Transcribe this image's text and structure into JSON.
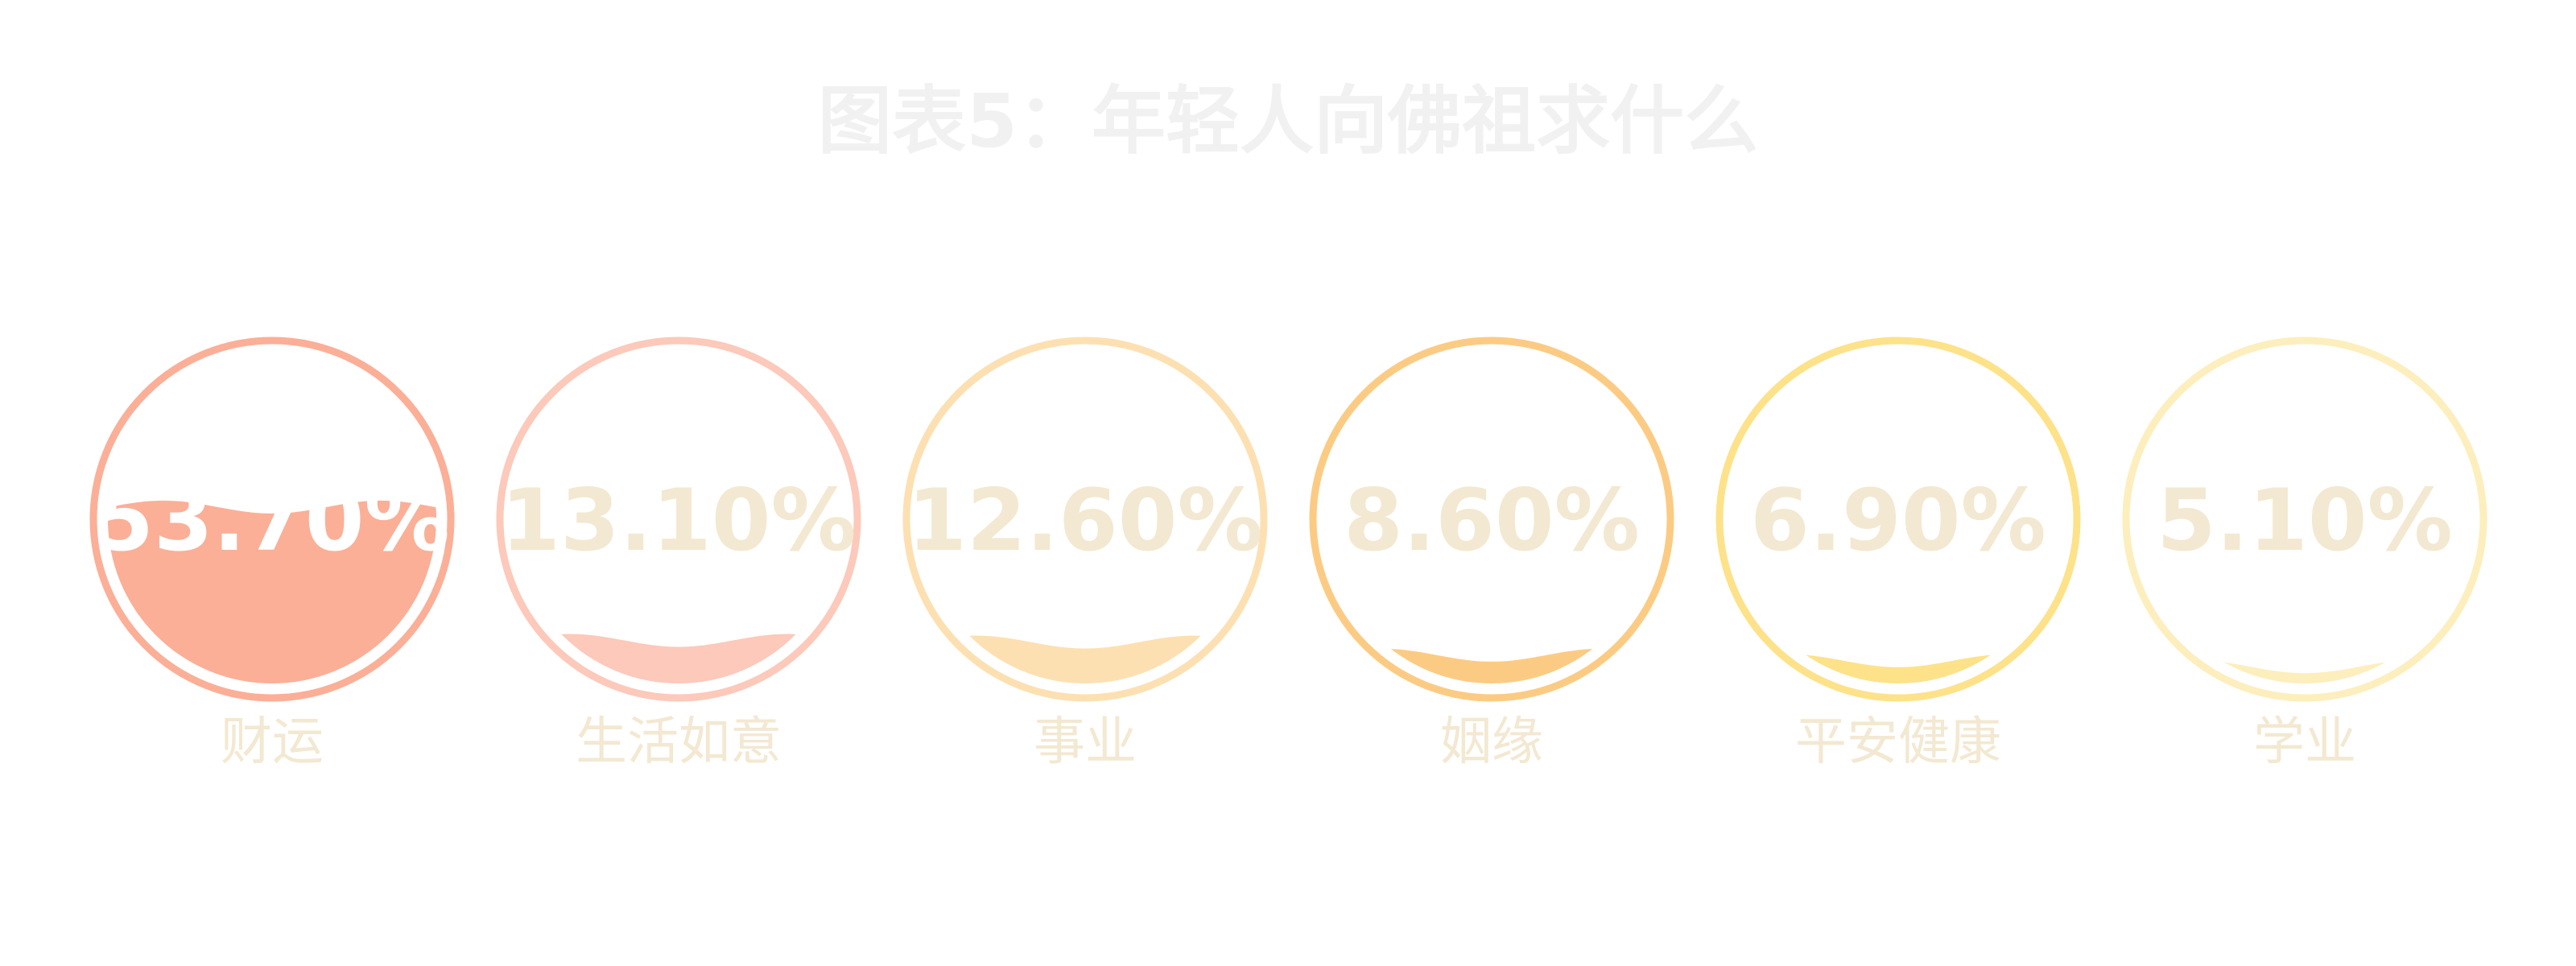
{
  "chart_data": {
    "type": "liquid-fill",
    "title": "图表5：年轻人向佛祖求什么",
    "categories": [
      "财运",
      "生活如意",
      "事业",
      "姻缘",
      "平安健康",
      "学业"
    ],
    "values": [
      53.7,
      13.1,
      12.6,
      8.6,
      6.9,
      5.1
    ],
    "value_labels": [
      "53.70%",
      "13.10%",
      "12.60%",
      "8.60%",
      "6.90%",
      "5.10%"
    ],
    "colors": [
      "#fbaf97",
      "#fcc9ba",
      "#fde0b2",
      "#fccb83",
      "#fde28a",
      "#fdeebd"
    ],
    "unit": "%",
    "max": 100
  },
  "style": {
    "title_color": "#f1f1f1",
    "text_color": "#f3e8d1",
    "inner_text_color": "#ffffff"
  }
}
